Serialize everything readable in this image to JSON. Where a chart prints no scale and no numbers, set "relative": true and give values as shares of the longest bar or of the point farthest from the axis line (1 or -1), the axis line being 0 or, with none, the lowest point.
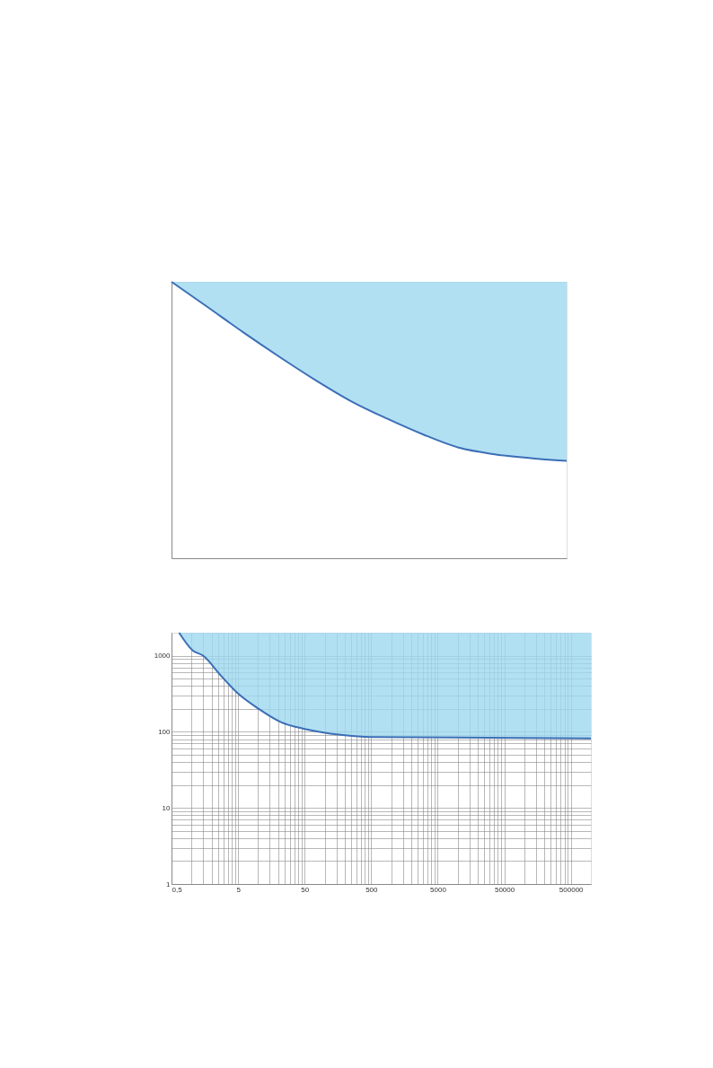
{
  "chart_data": [
    {
      "type": "line",
      "relative": true,
      "categories": [
        null,
        null,
        null,
        null,
        null,
        null,
        null,
        null,
        null,
        null,
        null,
        null
      ],
      "series": [
        {
          "color": "#3b6fb6",
          "values": [
            1.0,
            0.909,
            0.817,
            0.729,
            0.645,
            0.568,
            0.505,
            0.448,
            0.4,
            0.376,
            0.362,
            0.352
          ],
          "lower": [
            1.0,
            0.909,
            0.817,
            0.729,
            0.645,
            0.568,
            0.505,
            0.448,
            0.4,
            0.376,
            0.362,
            0.352
          ],
          "upper": [
            1.0,
            1.0,
            1.0,
            1.0,
            1.0,
            1.0,
            1.0,
            1.0,
            1.0,
            1.0,
            1.0,
            1.0
          ]
        }
      ]
    },
    {
      "type": "line",
      "log": "xy",
      "grid": true,
      "x": [
        0.65,
        1.03,
        1.49,
        2.77,
        5,
        10.1,
        22,
        50,
        175,
        500,
        1000000
      ],
      "xlim": [
        0.5,
        1000000
      ],
      "ylim": [
        1,
        2000
      ],
      "xticks": [
        {
          "value": 0.5,
          "label": "0,5"
        },
        {
          "value": 1,
          "label": null
        },
        {
          "value": 1.5,
          "label": null
        },
        {
          "value": 2,
          "label": null
        },
        {
          "value": 2.5,
          "label": null
        },
        {
          "value": 3,
          "label": null
        },
        {
          "value": 3.5,
          "label": null
        },
        {
          "value": 4,
          "label": null
        },
        {
          "value": 4.5,
          "label": null
        },
        5,
        {
          "value": 10,
          "label": null
        },
        {
          "value": 15,
          "label": null
        },
        {
          "value": 20,
          "label": null
        },
        {
          "value": 25,
          "label": null
        },
        {
          "value": 30,
          "label": null
        },
        {
          "value": 35,
          "label": null
        },
        {
          "value": 40,
          "label": null
        },
        {
          "value": 45,
          "label": null
        },
        50,
        {
          "value": 100,
          "label": null
        },
        {
          "value": 150,
          "label": null
        },
        {
          "value": 200,
          "label": null
        },
        {
          "value": 250,
          "label": null
        },
        {
          "value": 300,
          "label": null
        },
        {
          "value": 350,
          "label": null
        },
        {
          "value": 400,
          "label": null
        },
        {
          "value": 450,
          "label": null
        },
        500,
        {
          "value": 1000,
          "label": null
        },
        {
          "value": 1500,
          "label": null
        },
        {
          "value": 2000,
          "label": null
        },
        {
          "value": 2500,
          "label": null
        },
        {
          "value": 3000,
          "label": null
        },
        {
          "value": 3500,
          "label": null
        },
        {
          "value": 4000,
          "label": null
        },
        {
          "value": 4500,
          "label": null
        },
        5000,
        {
          "value": 10000,
          "label": null
        },
        {
          "value": 15000,
          "label": null
        },
        {
          "value": 20000,
          "label": null
        },
        {
          "value": 25000,
          "label": null
        },
        {
          "value": 30000,
          "label": null
        },
        {
          "value": 35000,
          "label": null
        },
        {
          "value": 40000,
          "label": null
        },
        {
          "value": 45000,
          "label": null
        },
        50000,
        {
          "value": 100000,
          "label": null
        },
        {
          "value": 150000,
          "label": null
        },
        {
          "value": 200000,
          "label": null
        },
        {
          "value": 250000,
          "label": null
        },
        {
          "value": 300000,
          "label": null
        },
        {
          "value": 350000,
          "label": null
        },
        {
          "value": 400000,
          "label": null
        },
        {
          "value": 450000,
          "label": null
        },
        500000
      ],
      "yticks": [
        1,
        {
          "value": 2,
          "label": null
        },
        {
          "value": 3,
          "label": null
        },
        {
          "value": 4,
          "label": null
        },
        {
          "value": 5,
          "label": null
        },
        {
          "value": 6,
          "label": null
        },
        {
          "value": 7,
          "label": null
        },
        {
          "value": 8,
          "label": null
        },
        {
          "value": 9,
          "label": null
        },
        10,
        {
          "value": 20,
          "label": null
        },
        {
          "value": 30,
          "label": null
        },
        {
          "value": 40,
          "label": null
        },
        {
          "value": 50,
          "label": null
        },
        {
          "value": 60,
          "label": null
        },
        {
          "value": 70,
          "label": null
        },
        {
          "value": 80,
          "label": null
        },
        {
          "value": 90,
          "label": null
        },
        100,
        {
          "value": 200,
          "label": null
        },
        {
          "value": 300,
          "label": null
        },
        {
          "value": 400,
          "label": null
        },
        {
          "value": 500,
          "label": null
        },
        {
          "value": 600,
          "label": null
        },
        {
          "value": 700,
          "label": null
        },
        {
          "value": 800,
          "label": null
        },
        {
          "value": 900,
          "label": null
        },
        1000
      ],
      "series": [
        {
          "color": "#3b6fb6",
          "values": [
            2000,
            1180,
            1000,
            545,
            317,
            201,
            134,
            109,
            91,
            85,
            82
          ],
          "lower": [
            2000,
            1180,
            1000,
            545,
            317,
            201,
            134,
            109,
            91,
            85,
            82
          ],
          "upper": [
            2000,
            2000,
            2000,
            2000,
            2000,
            2000,
            2000,
            2000,
            2000,
            2000,
            2000
          ]
        }
      ]
    }
  ]
}
